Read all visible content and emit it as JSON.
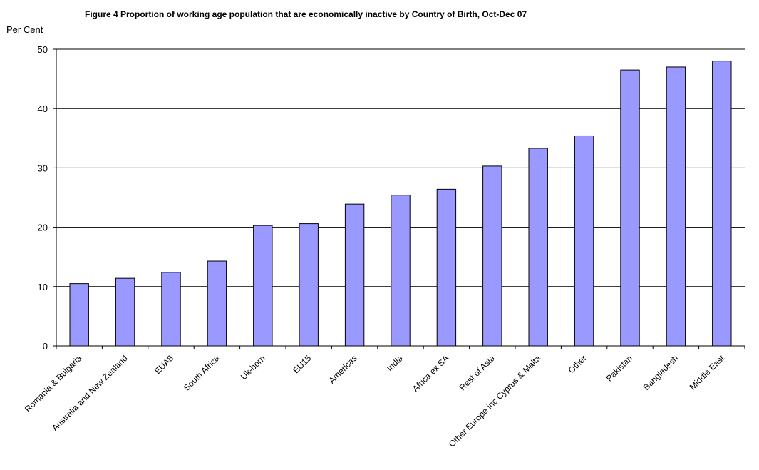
{
  "chart_data": {
    "type": "bar",
    "title": "Figure 4 Proportion of working age population that are economically inactive by Country of Birth, Oct-Dec 07",
    "ylabel": "Per Cent",
    "xlabel": "",
    "ylim": [
      0,
      50
    ],
    "yticks": [
      0,
      10,
      20,
      30,
      40,
      50
    ],
    "grid": true,
    "bar_color": "#9999ff",
    "categories": [
      "Romania & Bulgaria",
      "Australia and New Zealand",
      "EUA8",
      "South Africa",
      "Uk-born",
      "EU15",
      "Americas",
      "India",
      "Africa ex SA",
      "Rest of Asia",
      "Other Europe inc Cyprus & Malta",
      "Other",
      "Pakistan",
      "Bangladesh",
      "Middle East"
    ],
    "values": [
      10.5,
      11.4,
      12.4,
      14.3,
      20.3,
      20.6,
      23.9,
      25.4,
      26.4,
      30.3,
      33.3,
      35.4,
      46.5,
      47.0,
      48.0
    ]
  }
}
